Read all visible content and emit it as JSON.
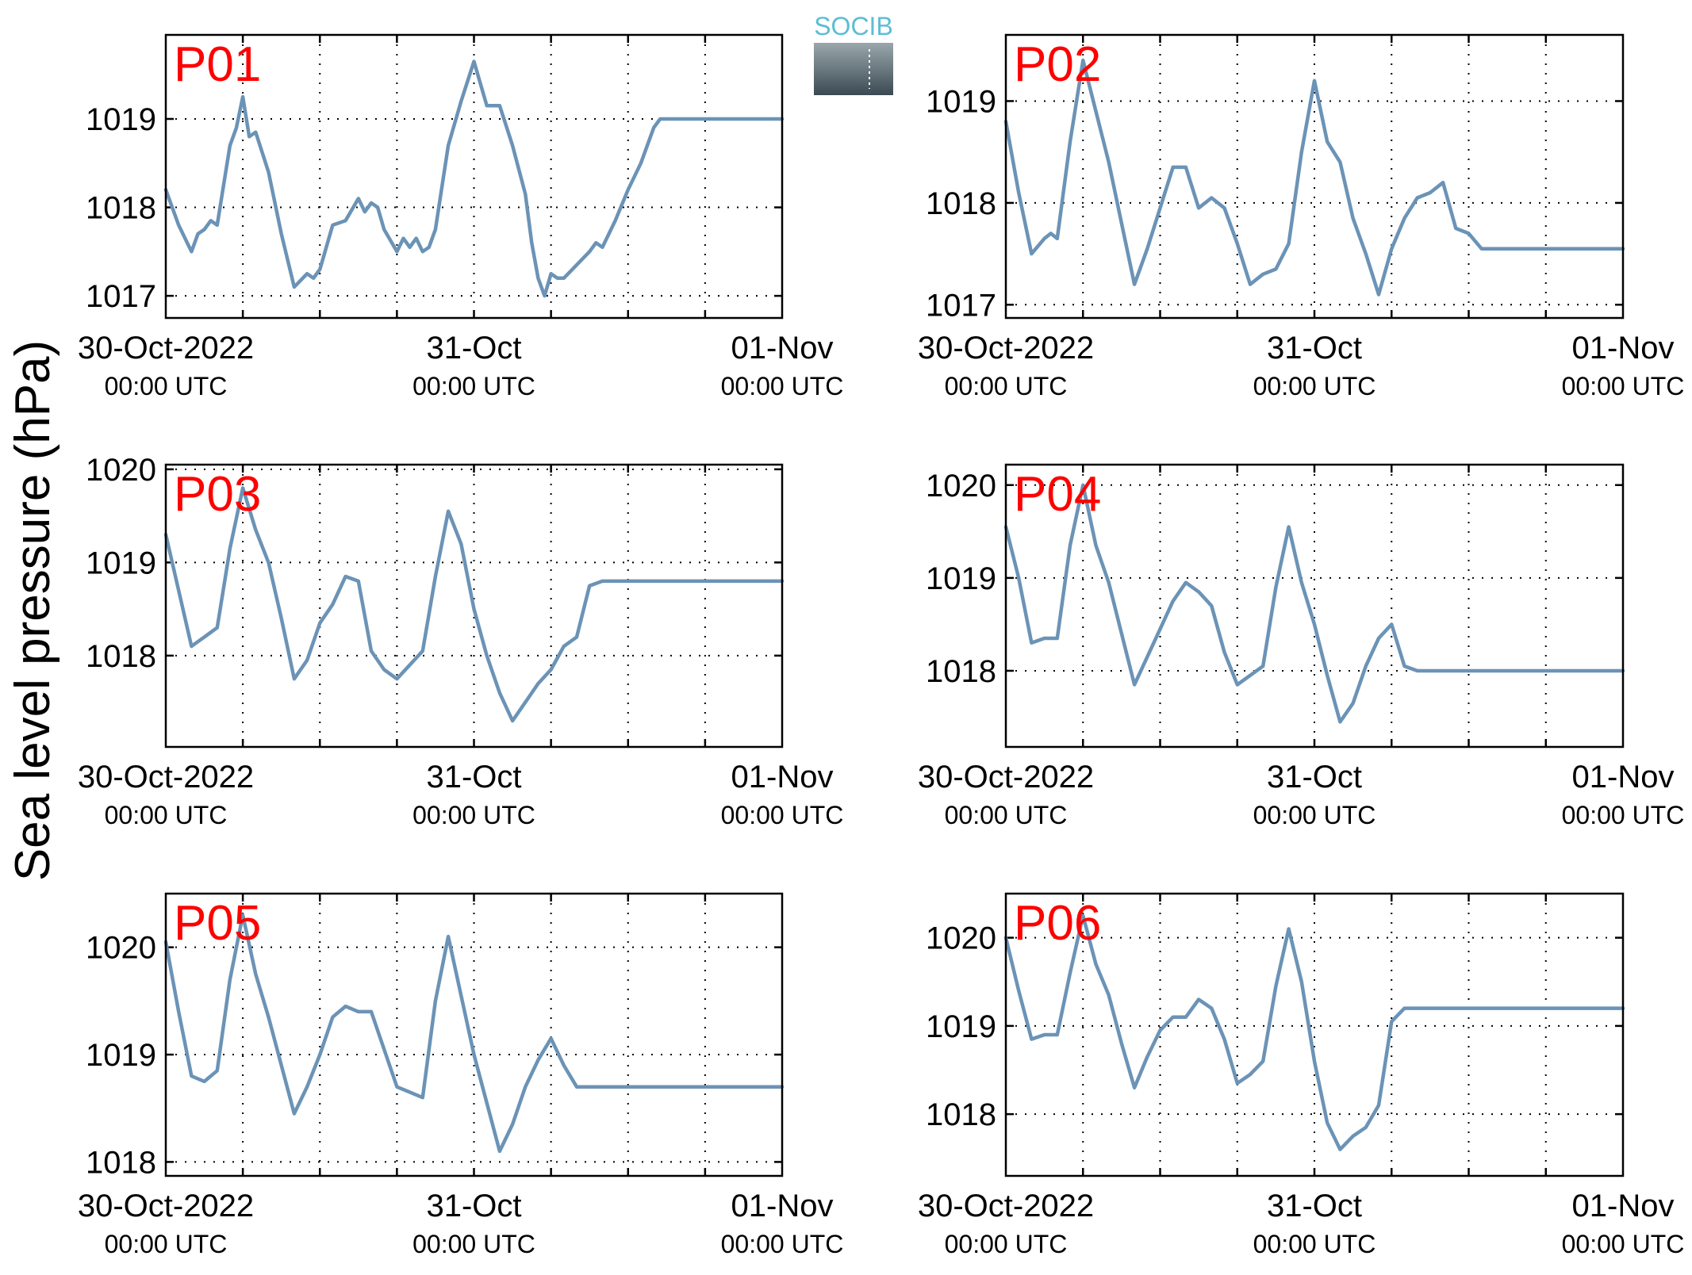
{
  "logo": {
    "text": "SOCIB"
  },
  "ylabel": "Sea level pressure (hPa)",
  "colors": {
    "series": "#6b93b6",
    "panel_label": "#ff0000"
  },
  "chart_data": [
    {
      "type": "line",
      "name": "P01",
      "xlim": [
        0,
        48
      ],
      "ylim": [
        1016.75,
        1019.95
      ],
      "yticks": [
        1017,
        1018,
        1019
      ],
      "x_major": [
        0,
        24,
        48
      ],
      "x_grid": [
        6,
        12,
        18,
        24,
        30,
        36,
        42
      ],
      "x_tick_labels": [
        "30-Oct-2022",
        "31-Oct",
        "01-Nov"
      ],
      "x_tick_sublabels": [
        "00:00 UTC",
        "00:00 UTC",
        "00:00 UTC"
      ],
      "x": [
        0,
        1,
        2,
        2.5,
        3,
        3.5,
        4,
        5,
        5.5,
        6,
        6.5,
        7,
        8,
        8.5,
        9,
        9.5,
        10,
        11,
        11.5,
        12,
        13,
        14,
        15,
        15.5,
        16,
        16.5,
        17,
        18,
        18.5,
        19,
        19.5,
        20,
        20.5,
        21,
        22,
        23,
        24,
        25,
        26,
        27,
        28,
        28.5,
        29,
        29.5,
        30,
        30.5,
        31,
        32,
        33,
        33.5,
        34,
        35,
        36,
        37,
        38,
        38.5,
        39,
        40,
        40.5,
        41,
        42,
        43,
        44,
        44.5,
        45,
        45.5,
        46,
        47,
        48
      ],
      "y": [
        1018.2,
        1017.8,
        1017.5,
        1017.7,
        1017.75,
        1017.85,
        1017.8,
        1018.7,
        1018.9,
        1019.25,
        1018.8,
        1018.85,
        1018.4,
        1018.05,
        1017.7,
        1017.4,
        1017.1,
        1017.25,
        1017.2,
        1017.3,
        1017.8,
        1017.85,
        1018.1,
        1017.95,
        1018.05,
        1018.0,
        1017.75,
        1017.5,
        1017.65,
        1017.55,
        1017.65,
        1017.5,
        1017.55,
        1017.75,
        1018.7,
        1019.2,
        1019.65,
        1019.15,
        1019.15,
        1018.7,
        1018.15,
        1017.6,
        1017.2,
        1017.0,
        1017.25,
        1017.2,
        1017.2,
        1017.35,
        1017.5,
        1017.6,
        1017.55,
        1017.85,
        1018.2,
        1018.5,
        1018.9,
        1019.0,
        1019.0,
        1019.0,
        1019.0,
        1019.0,
        1019.0,
        1019.0,
        1019.0,
        1019.0,
        1019.0,
        1019.0,
        1019.0,
        1019.0,
        1019.0
      ]
    },
    {
      "type": "line",
      "name": "P02",
      "xlim": [
        0,
        48
      ],
      "ylim": [
        1016.87,
        1019.65
      ],
      "yticks": [
        1017,
        1018,
        1019
      ],
      "x_major": [
        0,
        24,
        48
      ],
      "x_grid": [
        6,
        12,
        18,
        24,
        30,
        36,
        42
      ],
      "x_tick_labels": [
        "30-Oct-2022",
        "31-Oct",
        "01-Nov"
      ],
      "x_tick_sublabels": [
        "00:00 UTC",
        "00:00 UTC",
        "00:00 UTC"
      ],
      "x": [
        0,
        1,
        2,
        3,
        3.5,
        4,
        5,
        6,
        7,
        8,
        9,
        10,
        11,
        12,
        13,
        14,
        15,
        16,
        17,
        18,
        19,
        20,
        21,
        22,
        23,
        24,
        25,
        26,
        27,
        28,
        29,
        30,
        31,
        32,
        33,
        34,
        35,
        36,
        37,
        38,
        39,
        40,
        41,
        42,
        43,
        44,
        45,
        46,
        47,
        48
      ],
      "y": [
        1018.8,
        1018.1,
        1017.5,
        1017.65,
        1017.7,
        1017.65,
        1018.6,
        1019.4,
        1018.9,
        1018.4,
        1017.8,
        1017.2,
        1017.55,
        1017.95,
        1018.35,
        1018.35,
        1017.95,
        1018.05,
        1017.95,
        1017.6,
        1017.2,
        1017.3,
        1017.35,
        1017.6,
        1018.5,
        1019.2,
        1018.6,
        1018.4,
        1017.85,
        1017.5,
        1017.1,
        1017.55,
        1017.85,
        1018.05,
        1018.1,
        1018.2,
        1017.75,
        1017.7,
        1017.55,
        1017.55,
        1017.55,
        1017.55,
        1017.55,
        1017.55,
        1017.55,
        1017.55,
        1017.55,
        1017.55,
        1017.55,
        1017.55
      ]
    },
    {
      "type": "line",
      "name": "P03",
      "xlim": [
        0,
        48
      ],
      "ylim": [
        1017.02,
        1020.05
      ],
      "yticks": [
        1018,
        1019,
        1020
      ],
      "x_major": [
        0,
        24,
        48
      ],
      "x_grid": [
        6,
        12,
        18,
        24,
        30,
        36,
        42
      ],
      "x_tick_labels": [
        "30-Oct-2022",
        "31-Oct",
        "01-Nov"
      ],
      "x_tick_sublabels": [
        "00:00 UTC",
        "00:00 UTC",
        "00:00 UTC"
      ],
      "x": [
        0,
        1,
        2,
        3,
        3.5,
        4,
        5,
        6,
        7,
        8,
        9,
        10,
        11,
        12,
        13,
        14,
        15,
        16,
        17,
        18,
        19,
        20,
        21,
        22,
        23,
        24,
        25,
        26,
        27,
        28,
        29,
        30,
        31,
        32,
        33,
        34,
        35,
        36,
        37,
        38,
        39,
        40,
        41,
        42,
        43,
        44,
        45,
        46,
        47,
        48
      ],
      "y": [
        1019.3,
        1018.7,
        1018.1,
        1018.2,
        1018.25,
        1018.3,
        1019.15,
        1019.8,
        1019.35,
        1019.0,
        1018.4,
        1017.75,
        1017.95,
        1018.35,
        1018.55,
        1018.85,
        1018.8,
        1018.05,
        1017.85,
        1017.75,
        1017.9,
        1018.05,
        1018.85,
        1019.55,
        1019.2,
        1018.5,
        1018.0,
        1017.6,
        1017.3,
        1017.5,
        1017.7,
        1017.85,
        1018.1,
        1018.2,
        1018.75,
        1018.8,
        1018.8,
        1018.8,
        1018.8,
        1018.8,
        1018.8,
        1018.8,
        1018.8,
        1018.8,
        1018.8,
        1018.8,
        1018.8,
        1018.8,
        1018.8,
        1018.8
      ]
    },
    {
      "type": "line",
      "name": "P04",
      "xlim": [
        0,
        48
      ],
      "ylim": [
        1017.18,
        1020.22
      ],
      "yticks": [
        1018,
        1019,
        1020
      ],
      "x_major": [
        0,
        24,
        48
      ],
      "x_grid": [
        6,
        12,
        18,
        24,
        30,
        36,
        42
      ],
      "x_tick_labels": [
        "30-Oct-2022",
        "31-Oct",
        "01-Nov"
      ],
      "x_tick_sublabels": [
        "00:00 UTC",
        "00:00 UTC",
        "00:00 UTC"
      ],
      "x": [
        0,
        1,
        2,
        3,
        4,
        5,
        6,
        7,
        8,
        9,
        10,
        11,
        12,
        13,
        14,
        15,
        16,
        17,
        18,
        19,
        20,
        21,
        22,
        23,
        24,
        25,
        26,
        27,
        28,
        29,
        30,
        31,
        32,
        33,
        34,
        35,
        36,
        37,
        38,
        39,
        40,
        41,
        42,
        43,
        44,
        45,
        46,
        47,
        48
      ],
      "y": [
        1019.55,
        1019.0,
        1018.3,
        1018.35,
        1018.35,
        1019.35,
        1020.0,
        1019.35,
        1018.95,
        1018.4,
        1017.85,
        1018.15,
        1018.45,
        1018.75,
        1018.95,
        1018.85,
        1018.7,
        1018.2,
        1017.85,
        1017.95,
        1018.05,
        1018.9,
        1019.55,
        1018.95,
        1018.5,
        1017.95,
        1017.45,
        1017.65,
        1018.05,
        1018.35,
        1018.5,
        1018.05,
        1018.0,
        1018.0,
        1018.0,
        1018.0,
        1018.0,
        1018.0,
        1018.0,
        1018.0,
        1018.0,
        1018.0,
        1018.0,
        1018.0,
        1018.0,
        1018.0,
        1018.0,
        1018.0,
        1018.0
      ]
    },
    {
      "type": "line",
      "name": "P05",
      "xlim": [
        0,
        48
      ],
      "ylim": [
        1017.87,
        1020.5
      ],
      "yticks": [
        1018,
        1019,
        1020
      ],
      "x_major": [
        0,
        24,
        48
      ],
      "x_grid": [
        6,
        12,
        18,
        24,
        30,
        36,
        42
      ],
      "x_tick_labels": [
        "30-Oct-2022",
        "31-Oct",
        "01-Nov"
      ],
      "x_tick_sublabels": [
        "00:00 UTC",
        "00:00 UTC",
        "00:00 UTC"
      ],
      "x": [
        0,
        1,
        2,
        3,
        4,
        5,
        6,
        7,
        8,
        9,
        10,
        11,
        12,
        13,
        14,
        15,
        16,
        17,
        18,
        19,
        20,
        21,
        22,
        23,
        24,
        25,
        26,
        27,
        28,
        29,
        30,
        31,
        32,
        33,
        34,
        35,
        36,
        37,
        38,
        39,
        40,
        41,
        42,
        43,
        44,
        45,
        46,
        47,
        48
      ],
      "y": [
        1020.05,
        1019.4,
        1018.8,
        1018.75,
        1018.85,
        1019.7,
        1020.3,
        1019.75,
        1019.35,
        1018.9,
        1018.45,
        1018.7,
        1019.0,
        1019.35,
        1019.45,
        1019.4,
        1019.4,
        1019.05,
        1018.7,
        1018.65,
        1018.6,
        1019.5,
        1020.1,
        1019.55,
        1019.0,
        1018.55,
        1018.1,
        1018.35,
        1018.7,
        1018.95,
        1019.15,
        1018.9,
        1018.7,
        1018.7,
        1018.7,
        1018.7,
        1018.7,
        1018.7,
        1018.7,
        1018.7,
        1018.7,
        1018.7,
        1018.7,
        1018.7,
        1018.7,
        1018.7,
        1018.7,
        1018.7,
        1018.7
      ]
    },
    {
      "type": "line",
      "name": "P06",
      "xlim": [
        0,
        48
      ],
      "ylim": [
        1017.3,
        1020.5
      ],
      "yticks": [
        1018,
        1019,
        1020
      ],
      "x_major": [
        0,
        24,
        48
      ],
      "x_grid": [
        6,
        12,
        18,
        24,
        30,
        36,
        42
      ],
      "x_tick_labels": [
        "30-Oct-2022",
        "31-Oct",
        "01-Nov"
      ],
      "x_tick_sublabels": [
        "00:00 UTC",
        "00:00 UTC",
        "00:00 UTC"
      ],
      "x": [
        0,
        1,
        2,
        3,
        4,
        5,
        6,
        7,
        8,
        9,
        10,
        11,
        12,
        13,
        14,
        15,
        16,
        17,
        18,
        19,
        20,
        21,
        22,
        23,
        24,
        25,
        26,
        27,
        28,
        29,
        30,
        31,
        32,
        33,
        34,
        35,
        36,
        37,
        38,
        39,
        40,
        41,
        42,
        43,
        44,
        45,
        46,
        47,
        48
      ],
      "y": [
        1020.0,
        1019.4,
        1018.85,
        1018.9,
        1018.9,
        1019.6,
        1020.25,
        1019.7,
        1019.35,
        1018.8,
        1018.3,
        1018.65,
        1018.95,
        1019.1,
        1019.1,
        1019.3,
        1019.2,
        1018.85,
        1018.35,
        1018.45,
        1018.6,
        1019.45,
        1020.1,
        1019.5,
        1018.6,
        1017.9,
        1017.6,
        1017.75,
        1017.85,
        1018.1,
        1019.05,
        1019.2,
        1019.2,
        1019.2,
        1019.2,
        1019.2,
        1019.2,
        1019.2,
        1019.2,
        1019.2,
        1019.2,
        1019.2,
        1019.2,
        1019.2,
        1019.2,
        1019.2,
        1019.2,
        1019.2,
        1019.2
      ]
    }
  ]
}
